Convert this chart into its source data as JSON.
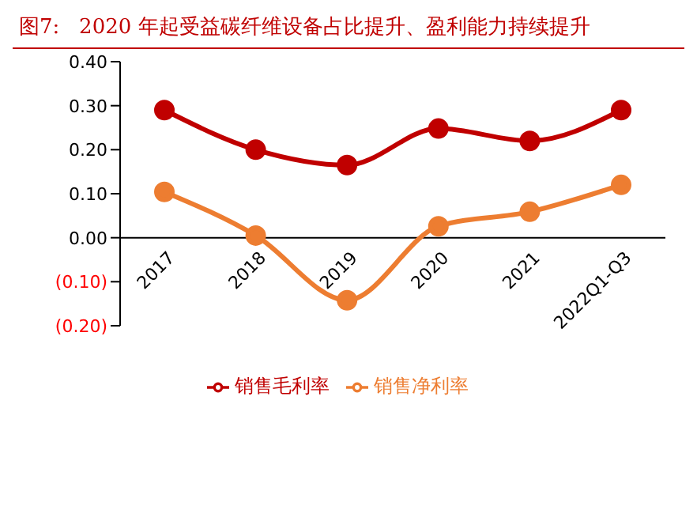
{
  "chart_data": {
    "type": "line",
    "title": "图7:   2020 年起受益碳纤维设备占比提升、盈利能力持续提升",
    "categories": [
      "2017",
      "2018",
      "2019",
      "2020",
      "2021",
      "2022Q1-Q3"
    ],
    "series": [
      {
        "name": "销售毛利率",
        "color": "#c00000",
        "values": [
          0.29,
          0.2,
          0.165,
          0.248,
          0.22,
          0.29
        ]
      },
      {
        "name": "销售净利率",
        "color": "#ed7d31",
        "values": [
          0.104,
          0.005,
          -0.142,
          0.026,
          0.059,
          0.12
        ]
      }
    ],
    "ylim": [
      -0.2,
      0.4
    ],
    "yticks": [
      {
        "value": -0.2,
        "label": "(0.20)"
      },
      {
        "value": -0.1,
        "label": "(0.10)"
      },
      {
        "value": 0,
        "label": "0.00"
      },
      {
        "value": 0.1,
        "label": "0.10"
      },
      {
        "value": 0.2,
        "label": "0.20"
      },
      {
        "value": 0.3,
        "label": "0.30"
      },
      {
        "value": 0.4,
        "label": "0.40"
      }
    ],
    "grid": false,
    "legend": "bottom",
    "marker": "circle",
    "line_style": "solid"
  }
}
